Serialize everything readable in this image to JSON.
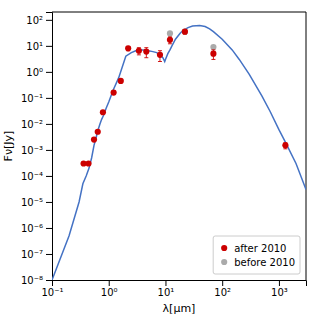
{
  "chart_data": {
    "type": "scatter",
    "xlabel": "λ[μm]",
    "ylabel": "Fν[Jy]",
    "log": true,
    "legend": "lower right",
    "xlim": [
      0.1,
      3000
    ],
    "ylim": [
      1e-08,
      200
    ],
    "xticks": [
      {
        "value": 0.1,
        "label": "10⁻¹"
      },
      {
        "value": 1,
        "label": "10⁰"
      },
      {
        "value": 10,
        "label": "10¹"
      },
      {
        "value": 100,
        "label": "10²"
      },
      {
        "value": 1000,
        "label": "10³"
      }
    ],
    "yticks": [
      {
        "value": 1e-08,
        "label": "10⁻⁸"
      },
      {
        "value": 1e-07,
        "label": "10⁻⁷"
      },
      {
        "value": 1e-06,
        "label": "10⁻⁶"
      },
      {
        "value": 1e-05,
        "label": "10⁻⁵"
      },
      {
        "value": 0.0001,
        "label": "10⁻⁴"
      },
      {
        "value": 0.001,
        "label": "10⁻³"
      },
      {
        "value": 0.01,
        "label": "10⁻²"
      },
      {
        "value": 0.1,
        "label": "10⁻¹"
      },
      {
        "value": 1,
        "label": "10⁰"
      },
      {
        "value": 10,
        "label": "10¹"
      },
      {
        "value": 100,
        "label": "10²"
      }
    ],
    "series": [
      {
        "type": "line",
        "color": "#4472c4",
        "x": [
          0.1,
          0.2,
          0.3,
          0.35,
          0.4,
          0.45,
          0.5,
          0.55,
          0.6,
          0.65,
          0.7,
          0.75,
          0.8,
          0.9,
          1.0,
          1.2,
          1.5,
          2.0,
          2.5,
          3.0,
          3.5,
          4.0,
          5.0,
          6.0,
          7.0,
          8.0,
          9.0,
          9.7,
          10.0,
          11.0,
          12.0,
          13.0,
          15.0,
          18.0,
          20.0,
          25.0,
          30.0,
          40.0,
          50.0,
          60.0,
          70.0,
          100.0,
          150.0,
          200.0,
          300.0,
          500.0,
          700.0,
          1000.0,
          1300.0,
          2000.0,
          3000.0
        ],
        "values": [
          1e-08,
          5e-07,
          1e-05,
          5e-05,
          0.0001,
          0.0002,
          0.0005,
          0.0015,
          0.003,
          0.006,
          0.01,
          0.015,
          0.02,
          0.04,
          0.07,
          0.2,
          0.6,
          4.0,
          5.5,
          6.5,
          7.0,
          7.0,
          6.5,
          6.0,
          5.5,
          4.5,
          3.5,
          2.5,
          3.0,
          5.0,
          7.0,
          10.0,
          18.0,
          30.0,
          38.0,
          50.0,
          58.0,
          60.0,
          55.0,
          45.0,
          35.0,
          18.0,
          7.0,
          3.0,
          0.8,
          0.12,
          0.03,
          0.006,
          0.002,
          0.0003,
          3e-05
        ]
      },
      {
        "name": "after 2010",
        "type": "scatter",
        "color": "#cc0000",
        "marker": "circle",
        "x": [
          0.36,
          0.44,
          0.55,
          0.64,
          0.79,
          1.22,
          1.63,
          2.2,
          3.4,
          4.6,
          8.0,
          12.0,
          22.0,
          70.0,
          1300.0
        ],
        "values": [
          0.0003,
          0.0003,
          0.0025,
          0.005,
          0.028,
          0.16,
          0.45,
          8.0,
          6.5,
          6.0,
          4.5,
          17.0,
          35.0,
          5.0,
          0.0015
        ],
        "yerr_lo": [
          3e-05,
          3e-05,
          0.0003,
          0.0005,
          0.003,
          0.02,
          0.05,
          1.5,
          2.0,
          2.5,
          2.0,
          5.0,
          6.0,
          2.0,
          0.0004
        ],
        "yerr_hi": [
          3e-05,
          3e-05,
          0.0003,
          0.0005,
          0.003,
          0.02,
          0.05,
          1.5,
          2.0,
          2.5,
          2.0,
          5.0,
          6.0,
          2.0,
          0.0004
        ]
      },
      {
        "name": "before 2010",
        "type": "scatter",
        "color": "#aaaaaa",
        "marker": "circle",
        "x": [
          12.0,
          22.0,
          70.0
        ],
        "values": [
          30.0,
          35.0,
          9.0
        ],
        "yerr_lo": [
          2.0,
          2.0,
          1.0
        ],
        "yerr_hi": [
          2.0,
          2.0,
          1.0
        ]
      }
    ]
  }
}
